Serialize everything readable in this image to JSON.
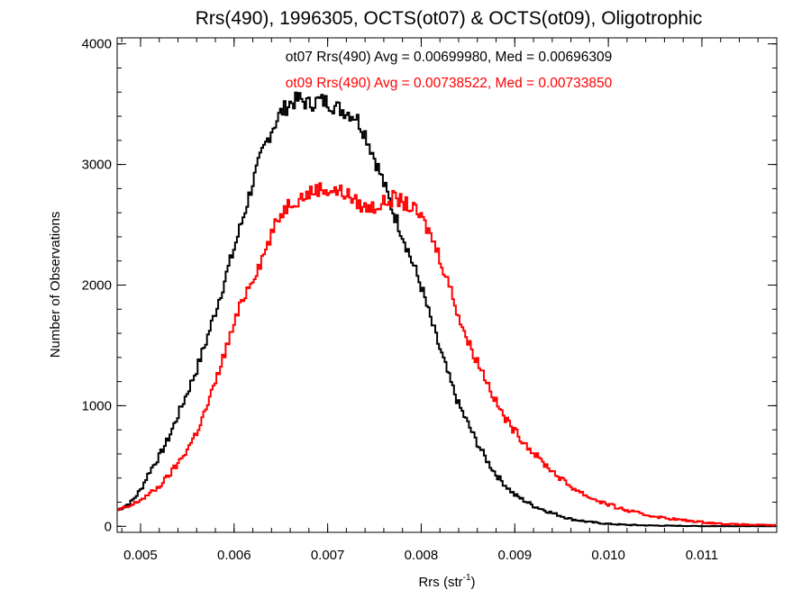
{
  "chart_data": {
    "type": "line",
    "step": true,
    "title": "Rrs(490), 1996305, OCTS(ot07) & OCTS(ot09), Oligotrophic",
    "xlabel": "Rrs (str",
    "xlabel_sup": "-1",
    "xlabel_close": ")",
    "ylabel": "Number of Observations",
    "xlim": [
      0.00475,
      0.0118
    ],
    "ylim": [
      -50,
      4050
    ],
    "x_ticks": [
      0.005,
      0.006,
      0.007,
      0.008,
      0.009,
      0.01,
      0.011
    ],
    "x_tick_labels": [
      "0.005",
      "0.006",
      "0.007",
      "0.008",
      "0.009",
      "0.010",
      "0.011"
    ],
    "x_minor_step": 0.0002,
    "y_ticks": [
      0,
      1000,
      2000,
      3000,
      4000
    ],
    "y_tick_labels": [
      "0",
      "1000",
      "2000",
      "3000",
      "4000"
    ],
    "y_minor_step": 200,
    "grid": false,
    "annotations": [
      {
        "text": "ot07 Rrs(490) Avg = 0.00699980, Med = 0.00696309",
        "color": "#000000"
      },
      {
        "text": "ot09 Rrs(490) Avg = 0.00738522, Med = 0.00733850",
        "color": "#ff0000"
      }
    ],
    "series": [
      {
        "color": "#000000",
        "x": [
          0.00475,
          0.0049,
          0.005,
          0.0051,
          0.0052,
          0.0053,
          0.0054,
          0.0055,
          0.0056,
          0.0057,
          0.0058,
          0.0059,
          0.006,
          0.0061,
          0.0062,
          0.0063,
          0.0064,
          0.0065,
          0.0066,
          0.0067,
          0.0068,
          0.0069,
          0.007,
          0.0071,
          0.0072,
          0.0073,
          0.0074,
          0.0075,
          0.0076,
          0.0077,
          0.0078,
          0.0079,
          0.008,
          0.0081,
          0.0082,
          0.0083,
          0.0084,
          0.0085,
          0.0086,
          0.0087,
          0.0088,
          0.0089,
          0.009,
          0.0092,
          0.0094,
          0.0096,
          0.0098,
          0.01,
          0.0102,
          0.0105,
          0.011,
          0.0118
        ],
        "y": [
          130,
          200,
          300,
          460,
          580,
          730,
          920,
          1110,
          1300,
          1530,
          1780,
          2040,
          2300,
          2570,
          2850,
          3090,
          3290,
          3430,
          3510,
          3540,
          3500,
          3530,
          3520,
          3470,
          3440,
          3400,
          3260,
          3060,
          2840,
          2610,
          2420,
          2200,
          1990,
          1720,
          1470,
          1230,
          1010,
          850,
          690,
          550,
          430,
          340,
          260,
          170,
          110,
          60,
          35,
          20,
          12,
          6,
          2,
          0
        ]
      },
      {
        "color": "#ff0000",
        "x": [
          0.00475,
          0.0049,
          0.005,
          0.0051,
          0.0052,
          0.0053,
          0.0054,
          0.0055,
          0.0056,
          0.0057,
          0.0058,
          0.0059,
          0.006,
          0.0061,
          0.0062,
          0.0063,
          0.0064,
          0.0065,
          0.0066,
          0.0067,
          0.0068,
          0.0069,
          0.007,
          0.0071,
          0.0072,
          0.0073,
          0.0074,
          0.0075,
          0.0076,
          0.0077,
          0.0078,
          0.0079,
          0.008,
          0.0081,
          0.0082,
          0.0083,
          0.0084,
          0.0085,
          0.0086,
          0.0087,
          0.0088,
          0.0089,
          0.009,
          0.0091,
          0.0092,
          0.0093,
          0.0094,
          0.0095,
          0.0096,
          0.0098,
          0.01,
          0.0102,
          0.0104,
          0.0106,
          0.0108,
          0.011,
          0.0112,
          0.0114,
          0.0118
        ],
        "y": [
          130,
          170,
          220,
          270,
          330,
          420,
          520,
          640,
          780,
          970,
          1190,
          1440,
          1670,
          1900,
          2060,
          2220,
          2420,
          2590,
          2690,
          2720,
          2760,
          2800,
          2790,
          2780,
          2760,
          2690,
          2640,
          2650,
          2680,
          2720,
          2690,
          2640,
          2560,
          2420,
          2230,
          2000,
          1750,
          1530,
          1370,
          1210,
          1030,
          890,
          790,
          700,
          610,
          530,
          460,
          390,
          330,
          240,
          180,
          130,
          95,
          70,
          50,
          35,
          22,
          15,
          8
        ]
      }
    ]
  }
}
